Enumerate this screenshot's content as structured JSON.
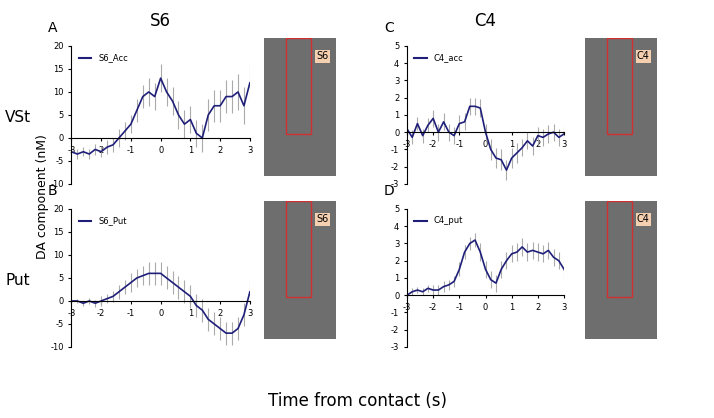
{
  "figure": {
    "column_titles": [
      "S6",
      "C4"
    ],
    "row_labels": [
      "VSt",
      "Put"
    ],
    "ylabel": "DA component (nM)",
    "xlabel": "Time from contact (s)",
    "image_labels": [
      "S6",
      "S6",
      "C4",
      "C4"
    ]
  },
  "chart_data": [
    {
      "type": "line",
      "panel": "A",
      "x": [
        -3,
        -2.8,
        -2.6,
        -2.4,
        -2.2,
        -2,
        -1.8,
        -1.6,
        -1.4,
        -1.2,
        -1,
        -0.8,
        -0.6,
        -0.4,
        -0.2,
        0,
        0.2,
        0.4,
        0.6,
        0.8,
        1,
        1.2,
        1.4,
        1.6,
        1.8,
        2,
        2.2,
        2.4,
        2.6,
        2.8,
        3
      ],
      "series": [
        {
          "name": "S6_Acc",
          "color": "#1f1f7a",
          "values": [
            -3,
            -3.5,
            -3,
            -3.5,
            -2.5,
            -3,
            -2,
            -1.5,
            0,
            1.5,
            3,
            6,
            9,
            10,
            9,
            13,
            10,
            8,
            5,
            3,
            4,
            1,
            0,
            5,
            7,
            7,
            9,
            9,
            10,
            7,
            12
          ],
          "errors": [
            1,
            1,
            1,
            1,
            1.2,
            1.2,
            1.5,
            1.5,
            2,
            2,
            2,
            2.5,
            2.5,
            3,
            3,
            3,
            3,
            3,
            3,
            3,
            3,
            3,
            3,
            3.5,
            3.5,
            3.5,
            3.5,
            3.5,
            4,
            4,
            4
          ]
        }
      ],
      "xlim": [
        -3,
        3
      ],
      "xticks": [
        -3,
        -2,
        -1,
        0,
        1,
        2,
        3
      ],
      "ylim": [
        -10,
        20
      ],
      "yticks": [
        -10,
        -5,
        0,
        5,
        10,
        15,
        20
      ],
      "legend": "upper left"
    },
    {
      "type": "line",
      "panel": "B",
      "x": [
        -3,
        -2.8,
        -2.6,
        -2.4,
        -2.2,
        -2,
        -1.8,
        -1.6,
        -1.4,
        -1.2,
        -1,
        -0.8,
        -0.6,
        -0.4,
        -0.2,
        0,
        0.2,
        0.4,
        0.6,
        0.8,
        1,
        1.2,
        1.4,
        1.6,
        1.8,
        2,
        2.2,
        2.4,
        2.6,
        2.8,
        3
      ],
      "series": [
        {
          "name": "S6_Put",
          "color": "#1f1f7a",
          "values": [
            0,
            0,
            -0.5,
            0,
            -0.5,
            0,
            0.5,
            1,
            2,
            3,
            4,
            5,
            5.5,
            6,
            6,
            6,
            5,
            4,
            3,
            2,
            1,
            -1,
            -2,
            -4,
            -5,
            -6,
            -7,
            -7,
            -6,
            -3,
            2
          ],
          "errors": [
            0.5,
            0.5,
            0.5,
            0.7,
            0.8,
            1,
            1,
            1.2,
            1.5,
            1.5,
            2,
            2,
            2,
            2.5,
            2.5,
            2.5,
            2.5,
            2.5,
            2.5,
            2.5,
            2.5,
            2.5,
            2.5,
            2.5,
            2.5,
            2.5,
            2.5,
            2.5,
            2.5,
            2.5,
            2.5
          ]
        }
      ],
      "xlim": [
        -3,
        3
      ],
      "xticks": [
        -3,
        -2,
        -1,
        0,
        1,
        2,
        3
      ],
      "ylim": [
        -10,
        20
      ],
      "yticks": [
        -10,
        -5,
        0,
        5,
        10,
        15,
        20
      ],
      "legend": "upper left"
    },
    {
      "type": "line",
      "panel": "C",
      "x": [
        -3,
        -2.8,
        -2.6,
        -2.4,
        -2.2,
        -2,
        -1.8,
        -1.6,
        -1.4,
        -1.2,
        -1,
        -0.8,
        -0.6,
        -0.4,
        -0.2,
        0,
        0.2,
        0.4,
        0.6,
        0.8,
        1,
        1.2,
        1.4,
        1.6,
        1.8,
        2,
        2.2,
        2.4,
        2.6,
        2.8,
        3
      ],
      "series": [
        {
          "name": "C4_acc",
          "color": "#1f1f7a",
          "values": [
            0.2,
            -0.3,
            0.5,
            -0.2,
            0.4,
            0.8,
            0,
            0.6,
            0,
            -0.2,
            0.5,
            0.6,
            1.5,
            1.5,
            1.4,
            0,
            -1,
            -1.5,
            -1.6,
            -2.2,
            -1.5,
            -1.2,
            -0.9,
            -0.5,
            -0.8,
            -0.2,
            -0.3,
            -0.1,
            0,
            -0.3,
            -0.1
          ],
          "errors": [
            0.4,
            0.4,
            0.4,
            0.4,
            0.4,
            0.5,
            0.5,
            0.5,
            0.5,
            0.5,
            0.5,
            0.5,
            0.5,
            0.5,
            0.5,
            0.5,
            0.6,
            0.6,
            0.6,
            0.6,
            0.6,
            0.6,
            0.5,
            0.5,
            0.5,
            0.5,
            0.5,
            0.5,
            0.5,
            0.5,
            0.5
          ]
        }
      ],
      "xlim": [
        -3,
        3
      ],
      "xticks": [
        -3,
        -2,
        -1,
        0,
        1,
        2,
        3
      ],
      "ylim": [
        -3,
        5
      ],
      "yticks": [
        -3,
        -2,
        -1,
        0,
        1,
        2,
        3,
        4,
        5
      ],
      "legend": "upper left"
    },
    {
      "type": "line",
      "panel": "D",
      "x": [
        -3,
        -2.8,
        -2.6,
        -2.4,
        -2.2,
        -2,
        -1.8,
        -1.6,
        -1.4,
        -1.2,
        -1,
        -0.8,
        -0.6,
        -0.4,
        -0.2,
        0,
        0.2,
        0.4,
        0.6,
        0.8,
        1,
        1.2,
        1.4,
        1.6,
        1.8,
        2,
        2.2,
        2.4,
        2.6,
        2.8,
        3
      ],
      "series": [
        {
          "name": "C4_put",
          "color": "#1f1f7a",
          "values": [
            0,
            0.2,
            0.3,
            0.2,
            0.4,
            0.3,
            0.3,
            0.5,
            0.6,
            0.8,
            1.5,
            2.5,
            3,
            3.2,
            2.5,
            1.5,
            0.9,
            0.7,
            1.5,
            2,
            2.4,
            2.5,
            2.8,
            2.5,
            2.6,
            2.5,
            2.4,
            2.6,
            2.2,
            2,
            1.5
          ],
          "errors": [
            0.2,
            0.2,
            0.2,
            0.2,
            0.2,
            0.3,
            0.3,
            0.3,
            0.3,
            0.3,
            0.4,
            0.4,
            0.4,
            0.4,
            0.5,
            0.5,
            0.5,
            0.5,
            0.5,
            0.5,
            0.5,
            0.5,
            0.5,
            0.5,
            0.5,
            0.5,
            0.5,
            0.5,
            0.5,
            0.5,
            0.5
          ]
        }
      ],
      "xlim": [
        -3,
        3
      ],
      "xticks": [
        -3,
        -2,
        -1,
        0,
        1,
        2,
        3
      ],
      "ylim": [
        -3,
        5
      ],
      "yticks": [
        -3,
        -2,
        -1,
        0,
        1,
        2,
        3,
        4,
        5
      ],
      "legend": "upper left"
    }
  ]
}
